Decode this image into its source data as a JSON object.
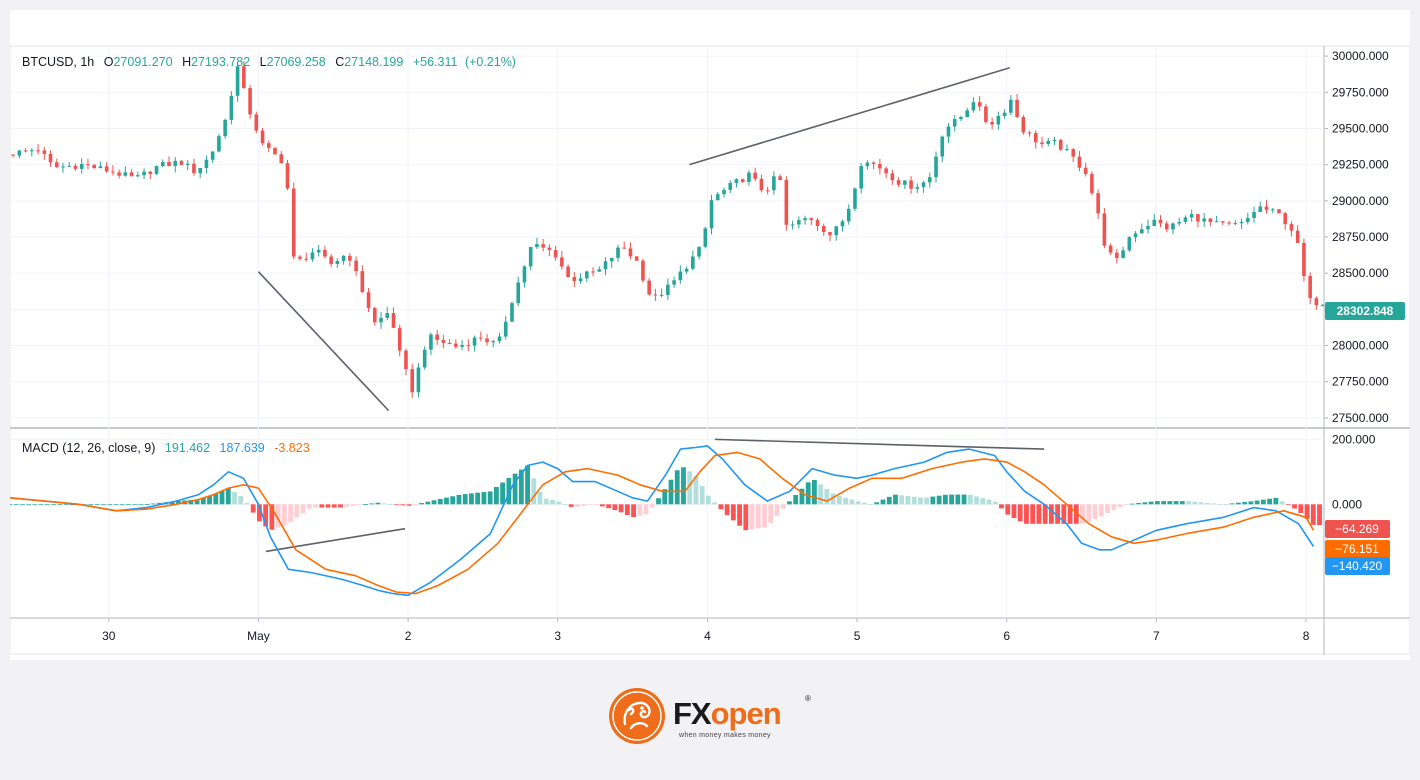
{
  "price_pane": {
    "symbol": "BTCUSD",
    "timeframe": "1h",
    "o_label": "O",
    "open": "27091.270",
    "h_label": "H",
    "high": "27193.782",
    "l_label": "L",
    "low": "27069.258",
    "c_label": "C",
    "close": "27148.199",
    "change": "+56.311",
    "change_pct": "(+0.21%)",
    "last_price_badge": "28302.848"
  },
  "macd_pane": {
    "title": "MACD (12, 26, close, 9)",
    "val_histogram": "191.462",
    "val_macd": "187.639",
    "val_signal": "-3.823",
    "badges": {
      "histogram": "−64.269",
      "signal": "−76.151",
      "macd": "−140.420"
    }
  },
  "colors": {
    "up": "#26a69a",
    "down": "#ef5350",
    "hist_up_strong": "#26a69a",
    "hist_up_weak": "#b2dfdb",
    "hist_down_strong": "#ff5252",
    "hist_down_weak": "#ffcdd2",
    "macd_line": "#2196f3",
    "signal_line": "#ff6d00",
    "trendline": "#5d606b"
  },
  "footer": {
    "logo_fx": "FX",
    "logo_open": "open",
    "logo_reg": "®",
    "tagline": "when money makes money",
    "logo_icon": "dragon-icon"
  },
  "chart_data": [
    {
      "type": "candlestick",
      "title": "BTCUSD, 1h",
      "x_ticks": [
        {
          "label": "30",
          "t": -1.0
        },
        {
          "label": "May",
          "t": 0.0
        },
        {
          "label": "2",
          "t": 1.0
        },
        {
          "label": "3",
          "t": 2.0
        },
        {
          "label": "4",
          "t": 3.0
        },
        {
          "label": "5",
          "t": 4.0
        },
        {
          "label": "6",
          "t": 5.0
        },
        {
          "label": "7",
          "t": 6.0
        },
        {
          "label": "8",
          "t": 7.0
        }
      ],
      "x_range_days": [
        -1.66,
        7.12
      ],
      "y_ticks": [
        "27500.000",
        "27750.000",
        "28000.000",
        "28250.000",
        "28500.000",
        "28750.000",
        "29000.000",
        "29250.000",
        "29500.000",
        "29750.000",
        "30000.000"
      ],
      "ylim": [
        27430,
        30070
      ],
      "price_path": [
        [
          -1.66,
          29320
        ],
        [
          -1.45,
          29360
        ],
        [
          -1.35,
          29230
        ],
        [
          -1.15,
          29250
        ],
        [
          -0.95,
          29200
        ],
        [
          -0.8,
          29150
        ],
        [
          -0.65,
          29240
        ],
        [
          -0.5,
          29270
        ],
        [
          -0.4,
          29200
        ],
        [
          -0.3,
          29310
        ],
        [
          -0.2,
          29560
        ],
        [
          -0.12,
          29930
        ],
        [
          -0.05,
          29650
        ],
        [
          0.05,
          29380
        ],
        [
          0.2,
          29260
        ],
        [
          0.26,
          28560
        ],
        [
          0.4,
          28660
        ],
        [
          0.5,
          28560
        ],
        [
          0.62,
          28640
        ],
        [
          0.7,
          28420
        ],
        [
          0.8,
          28150
        ],
        [
          0.9,
          28240
        ],
        [
          0.97,
          27920
        ],
        [
          1.05,
          27690
        ],
        [
          1.15,
          28060
        ],
        [
          1.35,
          27990
        ],
        [
          1.5,
          28060
        ],
        [
          1.62,
          28000
        ],
        [
          1.72,
          28330
        ],
        [
          1.85,
          28700
        ],
        [
          2.0,
          28640
        ],
        [
          2.1,
          28450
        ],
        [
          2.3,
          28520
        ],
        [
          2.45,
          28690
        ],
        [
          2.55,
          28580
        ],
        [
          2.65,
          28310
        ],
        [
          2.78,
          28420
        ],
        [
          2.88,
          28550
        ],
        [
          2.98,
          28680
        ],
        [
          3.05,
          29010
        ],
        [
          3.2,
          29120
        ],
        [
          3.3,
          29180
        ],
        [
          3.4,
          29060
        ],
        [
          3.5,
          29190
        ],
        [
          3.55,
          28810
        ],
        [
          3.7,
          28890
        ],
        [
          3.85,
          28760
        ],
        [
          3.95,
          28900
        ],
        [
          4.05,
          29270
        ],
        [
          4.15,
          29250
        ],
        [
          4.3,
          29130
        ],
        [
          4.4,
          29100
        ],
        [
          4.5,
          29140
        ],
        [
          4.6,
          29500
        ],
        [
          4.7,
          29560
        ],
        [
          4.8,
          29700
        ],
        [
          4.9,
          29520
        ],
        [
          5.0,
          29620
        ],
        [
          5.05,
          29700
        ],
        [
          5.12,
          29500
        ],
        [
          5.25,
          29390
        ],
        [
          5.35,
          29400
        ],
        [
          5.45,
          29310
        ],
        [
          5.55,
          29200
        ],
        [
          5.62,
          28950
        ],
        [
          5.68,
          28680
        ],
        [
          5.75,
          28570
        ],
        [
          5.85,
          28770
        ],
        [
          6.0,
          28860
        ],
        [
          6.1,
          28810
        ],
        [
          6.25,
          28900
        ],
        [
          6.4,
          28840
        ],
        [
          6.5,
          28830
        ],
        [
          6.6,
          28840
        ],
        [
          6.7,
          28960
        ],
        [
          6.85,
          28900
        ],
        [
          6.95,
          28770
        ],
        [
          7.0,
          28500
        ],
        [
          7.05,
          28300
        ]
      ],
      "last_price": 28302.848,
      "ohlc_legend": {
        "open": 27091.27,
        "high": 27193.782,
        "low": 27069.258,
        "close": 27148.199,
        "change": 56.311,
        "change_pct": 0.21
      },
      "trendlines": [
        {
          "from": [
            0.0,
            28510
          ],
          "to": [
            0.87,
            27550
          ]
        },
        {
          "from": [
            2.88,
            29250
          ],
          "to": [
            5.02,
            29920
          ]
        }
      ]
    },
    {
      "type": "line",
      "title": "MACD (12, 26, close, 9)",
      "y_ticks": [
        "200.000",
        "0.000"
      ],
      "ylim": [
        -350,
        235
      ],
      "legend_values": {
        "histogram": 191.462,
        "macd": 187.639,
        "signal": -3.823
      },
      "series": [
        {
          "key": "macd",
          "x": [
            -1.66,
            -1.2,
            -0.95,
            -0.75,
            -0.55,
            -0.4,
            -0.3,
            -0.2,
            -0.1,
            0.0,
            0.08,
            0.2,
            0.35,
            0.55,
            0.7,
            0.8,
            0.9,
            1.0,
            1.15,
            1.35,
            1.55,
            1.7,
            1.8,
            1.9,
            2.0,
            2.1,
            2.25,
            2.4,
            2.5,
            2.6,
            2.72,
            2.82,
            2.92,
            3.0,
            3.1,
            3.25,
            3.4,
            3.55,
            3.7,
            3.85,
            4.0,
            4.1,
            4.25,
            4.45,
            4.6,
            4.75,
            4.92,
            5.0,
            5.12,
            5.25,
            5.4,
            5.5,
            5.62,
            5.7,
            5.8,
            6.0,
            6.2,
            6.45,
            6.65,
            6.8,
            6.95,
            7.05
          ],
          "y": [
            20,
            0,
            -20,
            -10,
            10,
            30,
            60,
            100,
            80,
            0,
            -100,
            -200,
            -210,
            -230,
            -250,
            -265,
            -275,
            -280,
            -240,
            -170,
            -90,
            60,
            120,
            130,
            110,
            70,
            70,
            40,
            20,
            10,
            90,
            170,
            175,
            180,
            140,
            60,
            10,
            40,
            110,
            90,
            80,
            90,
            110,
            130,
            160,
            170,
            150,
            100,
            40,
            0,
            -60,
            -120,
            -140,
            -140,
            -120,
            -80,
            -60,
            -40,
            -10,
            -20,
            -60,
            -130
          ]
        },
        {
          "key": "signal",
          "x": [
            -1.66,
            -1.2,
            -0.95,
            -0.75,
            -0.55,
            -0.4,
            -0.3,
            -0.2,
            -0.1,
            0.0,
            0.1,
            0.25,
            0.45,
            0.65,
            0.8,
            0.92,
            1.05,
            1.2,
            1.4,
            1.6,
            1.75,
            1.9,
            2.05,
            2.2,
            2.4,
            2.55,
            2.7,
            2.85,
            2.95,
            3.05,
            3.2,
            3.35,
            3.5,
            3.65,
            3.8,
            3.95,
            4.1,
            4.3,
            4.5,
            4.7,
            4.85,
            5.0,
            5.12,
            5.25,
            5.4,
            5.55,
            5.7,
            5.85,
            6.0,
            6.2,
            6.45,
            6.65,
            6.85,
            7.0,
            7.05
          ],
          "y": [
            20,
            0,
            -20,
            -15,
            0,
            15,
            30,
            50,
            60,
            50,
            -20,
            -140,
            -200,
            -220,
            -250,
            -270,
            -275,
            -250,
            -200,
            -120,
            -30,
            60,
            100,
            110,
            90,
            60,
            40,
            40,
            100,
            150,
            160,
            140,
            80,
            30,
            10,
            50,
            80,
            80,
            110,
            130,
            140,
            130,
            100,
            60,
            0,
            -60,
            -100,
            -120,
            -110,
            -90,
            -70,
            -40,
            -20,
            -40,
            -80
          ]
        }
      ],
      "histogram": {
        "x": [
          -1.66,
          -1.2,
          -0.95,
          -0.75,
          -0.55,
          -0.4,
          -0.3,
          -0.2,
          -0.1,
          0.0,
          0.08,
          0.2,
          0.35,
          0.55,
          0.7,
          0.8,
          0.9,
          1.0,
          1.15,
          1.35,
          1.55,
          1.7,
          1.8,
          1.9,
          2.0,
          2.1,
          2.25,
          2.4,
          2.5,
          2.6,
          2.72,
          2.82,
          2.92,
          3.0,
          3.1,
          3.25,
          3.4,
          3.55,
          3.7,
          3.85,
          4.0,
          4.1,
          4.25,
          4.45,
          4.6,
          4.75,
          4.92,
          5.0,
          5.12,
          5.25,
          5.4,
          5.5,
          5.62,
          5.7,
          5.8,
          6.0,
          6.2,
          6.45,
          6.65,
          6.8,
          6.95,
          7.05
        ],
        "y": [
          0,
          0,
          0,
          0,
          10,
          15,
          30,
          50,
          20,
          -50,
          -80,
          -60,
          -10,
          -10,
          0,
          5,
          0,
          -5,
          10,
          30,
          40,
          90,
          120,
          20,
          10,
          -10,
          0,
          -20,
          -40,
          -30,
          50,
          120,
          90,
          30,
          -20,
          -80,
          -70,
          10,
          80,
          30,
          10,
          0,
          30,
          20,
          30,
          30,
          10,
          -30,
          -60,
          -60,
          -60,
          -60,
          -40,
          -20,
          0,
          10,
          10,
          0,
          10,
          20,
          -20,
          -64
        ]
      }
    }
  ]
}
